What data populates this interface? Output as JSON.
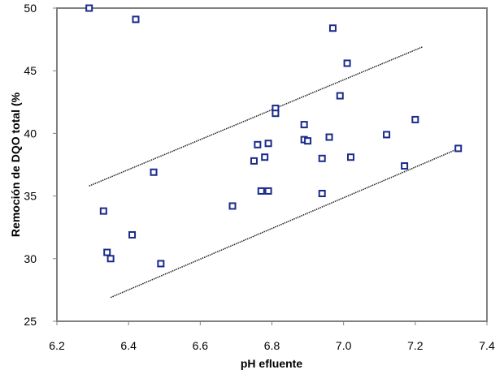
{
  "chart_data": {
    "type": "scatter",
    "title": "",
    "xlabel": "pH efluente",
    "ylabel": "Remoción de DQO total (%",
    "xlim": [
      6.2,
      7.4
    ],
    "ylim": [
      25,
      50
    ],
    "x_ticks": [
      "6.2",
      "6.4",
      "6.6",
      "6.8",
      "7.0",
      "7.2",
      "7.4"
    ],
    "y_ticks": [
      "25",
      "30",
      "35",
      "40",
      "45",
      "50"
    ],
    "grid": false,
    "legend": "none",
    "marker": "hollow-square",
    "marker_color": "#1a2a8c",
    "series": [
      {
        "points": [
          [
            6.29,
            50.0
          ],
          [
            6.42,
            49.1
          ],
          [
            6.33,
            33.8
          ],
          [
            6.34,
            30.5
          ],
          [
            6.35,
            30.0
          ],
          [
            6.41,
            31.9
          ],
          [
            6.47,
            36.9
          ],
          [
            6.49,
            29.6
          ],
          [
            6.69,
            34.2
          ],
          [
            6.75,
            37.8
          ],
          [
            6.76,
            39.1
          ],
          [
            6.77,
            35.4
          ],
          [
            6.78,
            38.1
          ],
          [
            6.79,
            39.2
          ],
          [
            6.79,
            35.4
          ],
          [
            6.81,
            42.0
          ],
          [
            6.81,
            41.6
          ],
          [
            6.89,
            40.7
          ],
          [
            6.89,
            39.5
          ],
          [
            6.9,
            39.4
          ],
          [
            6.94,
            38.0
          ],
          [
            6.94,
            35.2
          ],
          [
            6.96,
            39.7
          ],
          [
            6.97,
            48.4
          ],
          [
            6.99,
            43.0
          ],
          [
            7.01,
            45.6
          ],
          [
            7.02,
            38.1
          ],
          [
            7.12,
            39.9
          ],
          [
            7.17,
            37.4
          ],
          [
            7.2,
            41.1
          ],
          [
            7.32,
            38.8
          ]
        ]
      }
    ],
    "bound_lines": [
      {
        "x": [
          6.29,
          7.22
        ],
        "y": [
          35.8,
          46.9
        ]
      },
      {
        "x": [
          6.35,
          7.33
        ],
        "y": [
          26.9,
          38.9
        ]
      }
    ],
    "colors": {
      "axis": "#808080",
      "bound_line": "#222222"
    }
  }
}
